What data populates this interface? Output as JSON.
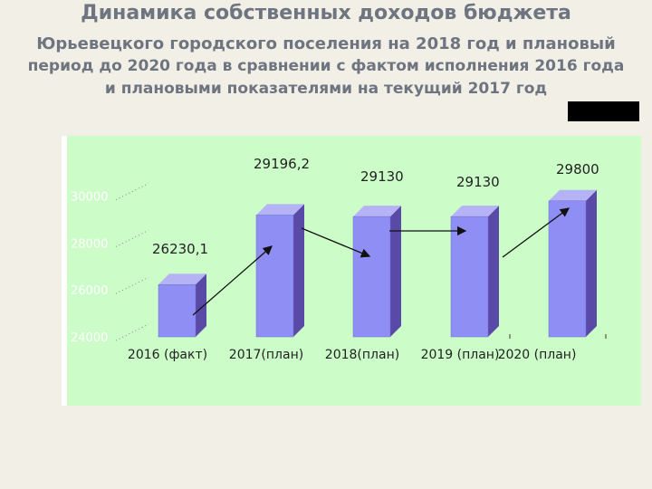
{
  "slide": {
    "title_line1": "Динамика собственных доходов бюджета",
    "title_line2": "Юрьевецкого городского поселения на 2018 год и плановый",
    "title_line3": "период до 2020 года в сравнении с фактом исполнения 2016 года",
    "title_line4": "и плановыми показателями на текущий 2017 год"
  },
  "colors": {
    "plot_bg": "#ccfcc8",
    "bar_front": "#8e8ef4",
    "bar_side": "#5a4aa8",
    "bar_top": "#b5b3f5",
    "tick_label": "#ffffff",
    "text": "#222222"
  },
  "chart_data": {
    "type": "bar",
    "categories": [
      "2016 (факт)",
      "2017(план)",
      "2018(план)",
      "2019 (план)",
      "2020 (план)"
    ],
    "values": [
      26230.1,
      29196.2,
      29130,
      29130,
      29800
    ],
    "data_labels": [
      "26230,1",
      "29196,2",
      "29130",
      "29130",
      "29800"
    ],
    "yticks": [
      24000,
      26000,
      28000,
      30000
    ],
    "ylim": [
      24000,
      31600
    ],
    "grid": false,
    "style": "3d-columns",
    "annotations": "arrows connecting consecutive bar tops"
  }
}
